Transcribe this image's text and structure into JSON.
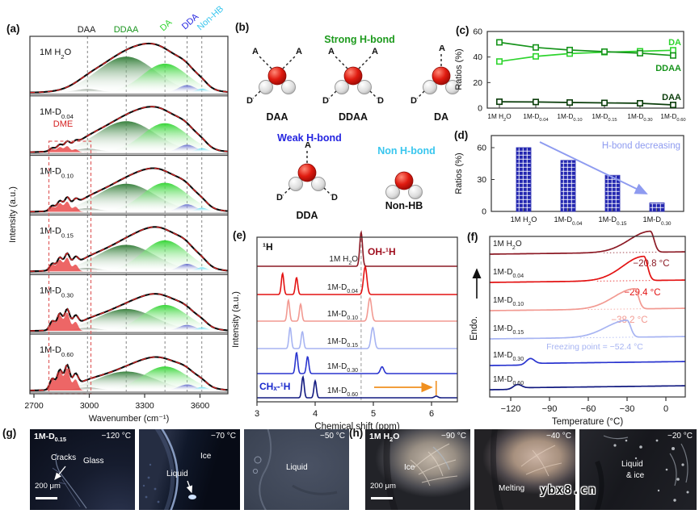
{
  "figure": {
    "panel_labels": {
      "a": "(a)",
      "b": "(b)",
      "c": "(c)",
      "d": "(d)",
      "e": "(e)",
      "f": "(f)",
      "g": "(g)",
      "h": "(h)"
    },
    "watermark": "ybx8.cn"
  },
  "samples": [
    "1M H2O",
    "1M-D0.04",
    "1M-D0.10",
    "1M-D0.15",
    "1M-D0.30",
    "1M-D0.60"
  ],
  "panel_a": {
    "dme_label": "DME",
    "species_labels": [
      {
        "text": "DAA",
        "color": "#1a1a1a",
        "rotate": false
      },
      {
        "text": "DDAA",
        "color": "#17941c",
        "rotate": false
      },
      {
        "text": "DA",
        "color": "#2ed42e",
        "rotate": true
      },
      {
        "text": "DDA",
        "color": "#2424e0",
        "rotate": true
      },
      {
        "text": "Non-HB",
        "color": "#38c6ee",
        "rotate": true
      }
    ]
  },
  "chart_data": [
    {
      "id": "a",
      "type": "area",
      "xlabel": "Wavenumber (cm⁻¹)",
      "ylabel": "Intensity (a.u.)",
      "xticks": [
        2700,
        3000,
        3300,
        3600
      ],
      "xlim": [
        2680,
        3760
      ],
      "components": {
        "DAA": 2990,
        "DDAA": 3200,
        "DA": 3410,
        "DDA": 3530,
        "Non-HB": 3610
      },
      "component_colors": {
        "DAA": "#708070",
        "DDAA": "#2d7a33",
        "DA": "#2fd42f",
        "DDA": "#5c63cc",
        "Non-HB": "#55d8f0",
        "DME": "#e84040"
      },
      "rows": [
        {
          "sample": "1M H2O",
          "amplitudes": {
            "DME": 0,
            "DAA": 0.07,
            "DDAA": 0.72,
            "DA": 0.58,
            "DDA": 0.15,
            "NonHB": 0.08
          }
        },
        {
          "sample": "1M-D0.04",
          "amplitudes": {
            "DME": 0.12,
            "DAA": 0.07,
            "DDAA": 0.62,
            "DA": 0.58,
            "DDA": 0.15,
            "NonHB": 0.08
          }
        },
        {
          "sample": "1M-D0.10",
          "amplitudes": {
            "DME": 0.2,
            "DAA": 0.07,
            "DDAA": 0.56,
            "DA": 0.58,
            "DDA": 0.15,
            "NonHB": 0.08
          }
        },
        {
          "sample": "1M-D0.15",
          "amplitudes": {
            "DME": 0.27,
            "DAA": 0.07,
            "DDAA": 0.53,
            "DA": 0.62,
            "DDA": 0.15,
            "NonHB": 0.08
          }
        },
        {
          "sample": "1M-D0.30",
          "amplitudes": {
            "DME": 0.36,
            "DAA": 0.06,
            "DDAA": 0.44,
            "DA": 0.52,
            "DDA": 0.12,
            "NonHB": 0.07
          }
        },
        {
          "sample": "1M-D0.60",
          "amplitudes": {
            "DME": 0.44,
            "DAA": 0.06,
            "DDAA": 0.38,
            "DA": 0.48,
            "DDA": 0.12,
            "NonHB": 0.07
          }
        }
      ]
    },
    {
      "id": "c",
      "type": "line",
      "ylabel": "Ratios (%)",
      "ylim": [
        0,
        60
      ],
      "yticks": [
        0,
        20,
        40,
        60
      ],
      "categories": [
        "1M H2O",
        "1M-D0.04",
        "1M-D0.10",
        "1M-D0.15",
        "1M-D0.30",
        "1M-D0.60"
      ],
      "series": [
        {
          "name": "DA",
          "color": "#2ed42e",
          "values": [
            36.5,
            40.5,
            42.7,
            43.8,
            44.5,
            45.3
          ]
        },
        {
          "name": "DDAA",
          "color": "#17941c",
          "values": [
            51.5,
            47.5,
            45.5,
            44.2,
            43.0,
            41.2
          ]
        },
        {
          "name": "DAA",
          "color": "#0b3d0b",
          "values": [
            5.0,
            4.8,
            4.4,
            4.1,
            3.8,
            2.5
          ]
        }
      ]
    },
    {
      "id": "d",
      "type": "bar",
      "ylabel": "Ratios (%)",
      "ylim": [
        0,
        70
      ],
      "yticks": [
        0,
        30,
        60
      ],
      "categories": [
        "1M H2O",
        "1M-D0.04",
        "1M-D0.15",
        "1M-D0.30"
      ],
      "values": [
        60,
        48,
        34,
        8
      ],
      "bar_color": "#2326b0",
      "annotation": {
        "text": "H-bond decreasing",
        "color": "#8e9bf0"
      }
    },
    {
      "id": "e",
      "type": "nmr",
      "xlabel": "Chemical shift (ppm)",
      "ylabel": "Intensity (a.u.)",
      "xticks": [
        3,
        4,
        5,
        6
      ],
      "xlim": [
        3,
        6.45
      ],
      "nucleus": "¹H",
      "oh_label": "OH-¹H",
      "ch_label": "CHₓ-¹H",
      "reference_line_ppm": 4.79,
      "rows": [
        {
          "sample": "1M H2O",
          "color": "#8c1a25",
          "ch_peaks": [],
          "oh_peak": 4.79,
          "oh_height": 1.0
        },
        {
          "sample": "1M-D0.04",
          "color": "#e31212",
          "ch_peaks": [
            3.44,
            3.68
          ],
          "oh_peak": 4.86,
          "oh_height": 0.82
        },
        {
          "sample": "1M-D0.10",
          "color": "#f29a92",
          "ch_peaks": [
            3.54,
            3.75
          ],
          "oh_peak": 4.94,
          "oh_height": 0.68
        },
        {
          "sample": "1M-D0.15",
          "color": "#a7b4f2",
          "ch_peaks": [
            3.57,
            3.78
          ],
          "oh_peak": 4.99,
          "oh_height": 0.62
        },
        {
          "sample": "1M-D0.30",
          "color": "#2a35cf",
          "ch_peaks": [
            3.68,
            3.87
          ],
          "oh_peak": 5.15,
          "oh_height": 0.2
        },
        {
          "sample": "1M-D0.60",
          "color": "#121a80",
          "ch_peaks": [
            3.79,
            4.0
          ],
          "oh_peak": 6.08,
          "oh_height": 0.05
        }
      ]
    },
    {
      "id": "f",
      "type": "dsc",
      "xlabel": "Temperature (°C)",
      "ylabel": "Endo.",
      "xticks": [
        "−120",
        "−90",
        "−60",
        "−30",
        "0"
      ],
      "xtick_values": [
        -120,
        -90,
        -60,
        -30,
        0
      ],
      "xlim": [
        -137,
        15
      ],
      "rows": [
        {
          "sample": "1M H2O",
          "color": "#8c1a25",
          "peak_temp": -12,
          "peak_height": 1.0,
          "freeze_label": "−20.8 °C"
        },
        {
          "sample": "1M-D0.04",
          "color": "#e31212",
          "peak_temp": -17,
          "peak_height": 1.15,
          "freeze_label": "−29.4 °C"
        },
        {
          "sample": "1M-D0.10",
          "color": "#f29a92",
          "peak_temp": -24,
          "peak_height": 0.95,
          "freeze_label": "−38.2 °C"
        },
        {
          "sample": "1M-D0.15",
          "color": "#a7b4f2",
          "peak_temp": -30,
          "peak_height": 0.82,
          "freeze_label": "Freezing point = −52.4 °C"
        },
        {
          "sample": "1M-D0.30",
          "color": "#2a35cf",
          "peak_temp": -105,
          "peak_height": 0.27
        },
        {
          "sample": "1M-D0.60",
          "color": "#121a80",
          "peak_temp": -115,
          "peak_height": 0.2
        }
      ]
    }
  ],
  "panel_b": {
    "groups": [
      {
        "title": "Strong H-bond",
        "color": "#1d9a1d",
        "molecules": [
          {
            "name": "DAA",
            "bonds": [
              "A-ul",
              "A-ur",
              "D-dl"
            ]
          },
          {
            "name": "DDAA",
            "bonds": [
              "A-ul",
              "A-ur",
              "D-dl",
              "D-dr"
            ]
          },
          {
            "name": "DA",
            "bonds": [
              "A-u",
              "D-dl"
            ]
          }
        ]
      },
      {
        "title": "Weak H-bond",
        "color": "#2424e0",
        "molecules": [
          {
            "name": "DDA",
            "bonds": [
              "A-u",
              "D-dl",
              "D-dr"
            ]
          }
        ]
      },
      {
        "title": "Non H-bond",
        "color": "#38c6ee",
        "molecules": [
          {
            "name": "Non-HB",
            "bonds": []
          }
        ]
      }
    ]
  },
  "panel_g": {
    "images": [
      {
        "sample": "1M-D0.15",
        "temp": "−120 °C",
        "annotations": [
          "Cracks",
          "Glass"
        ],
        "scalebar": "200 μm"
      },
      {
        "temp": "−70 °C",
        "annotations": [
          "Ice",
          "Liquid"
        ]
      },
      {
        "temp": "−50 °C",
        "annotations": [
          "Liquid"
        ]
      }
    ]
  },
  "panel_h": {
    "images": [
      {
        "sample": "1M H2O",
        "temp": "−90 °C",
        "annotations": [
          "Ice"
        ],
        "scalebar": "200 μm"
      },
      {
        "temp": "−40 °C",
        "annotations": [
          "Melting"
        ]
      },
      {
        "temp": "−20 °C",
        "annotations": [
          "Liquid",
          "& ice"
        ]
      }
    ]
  }
}
